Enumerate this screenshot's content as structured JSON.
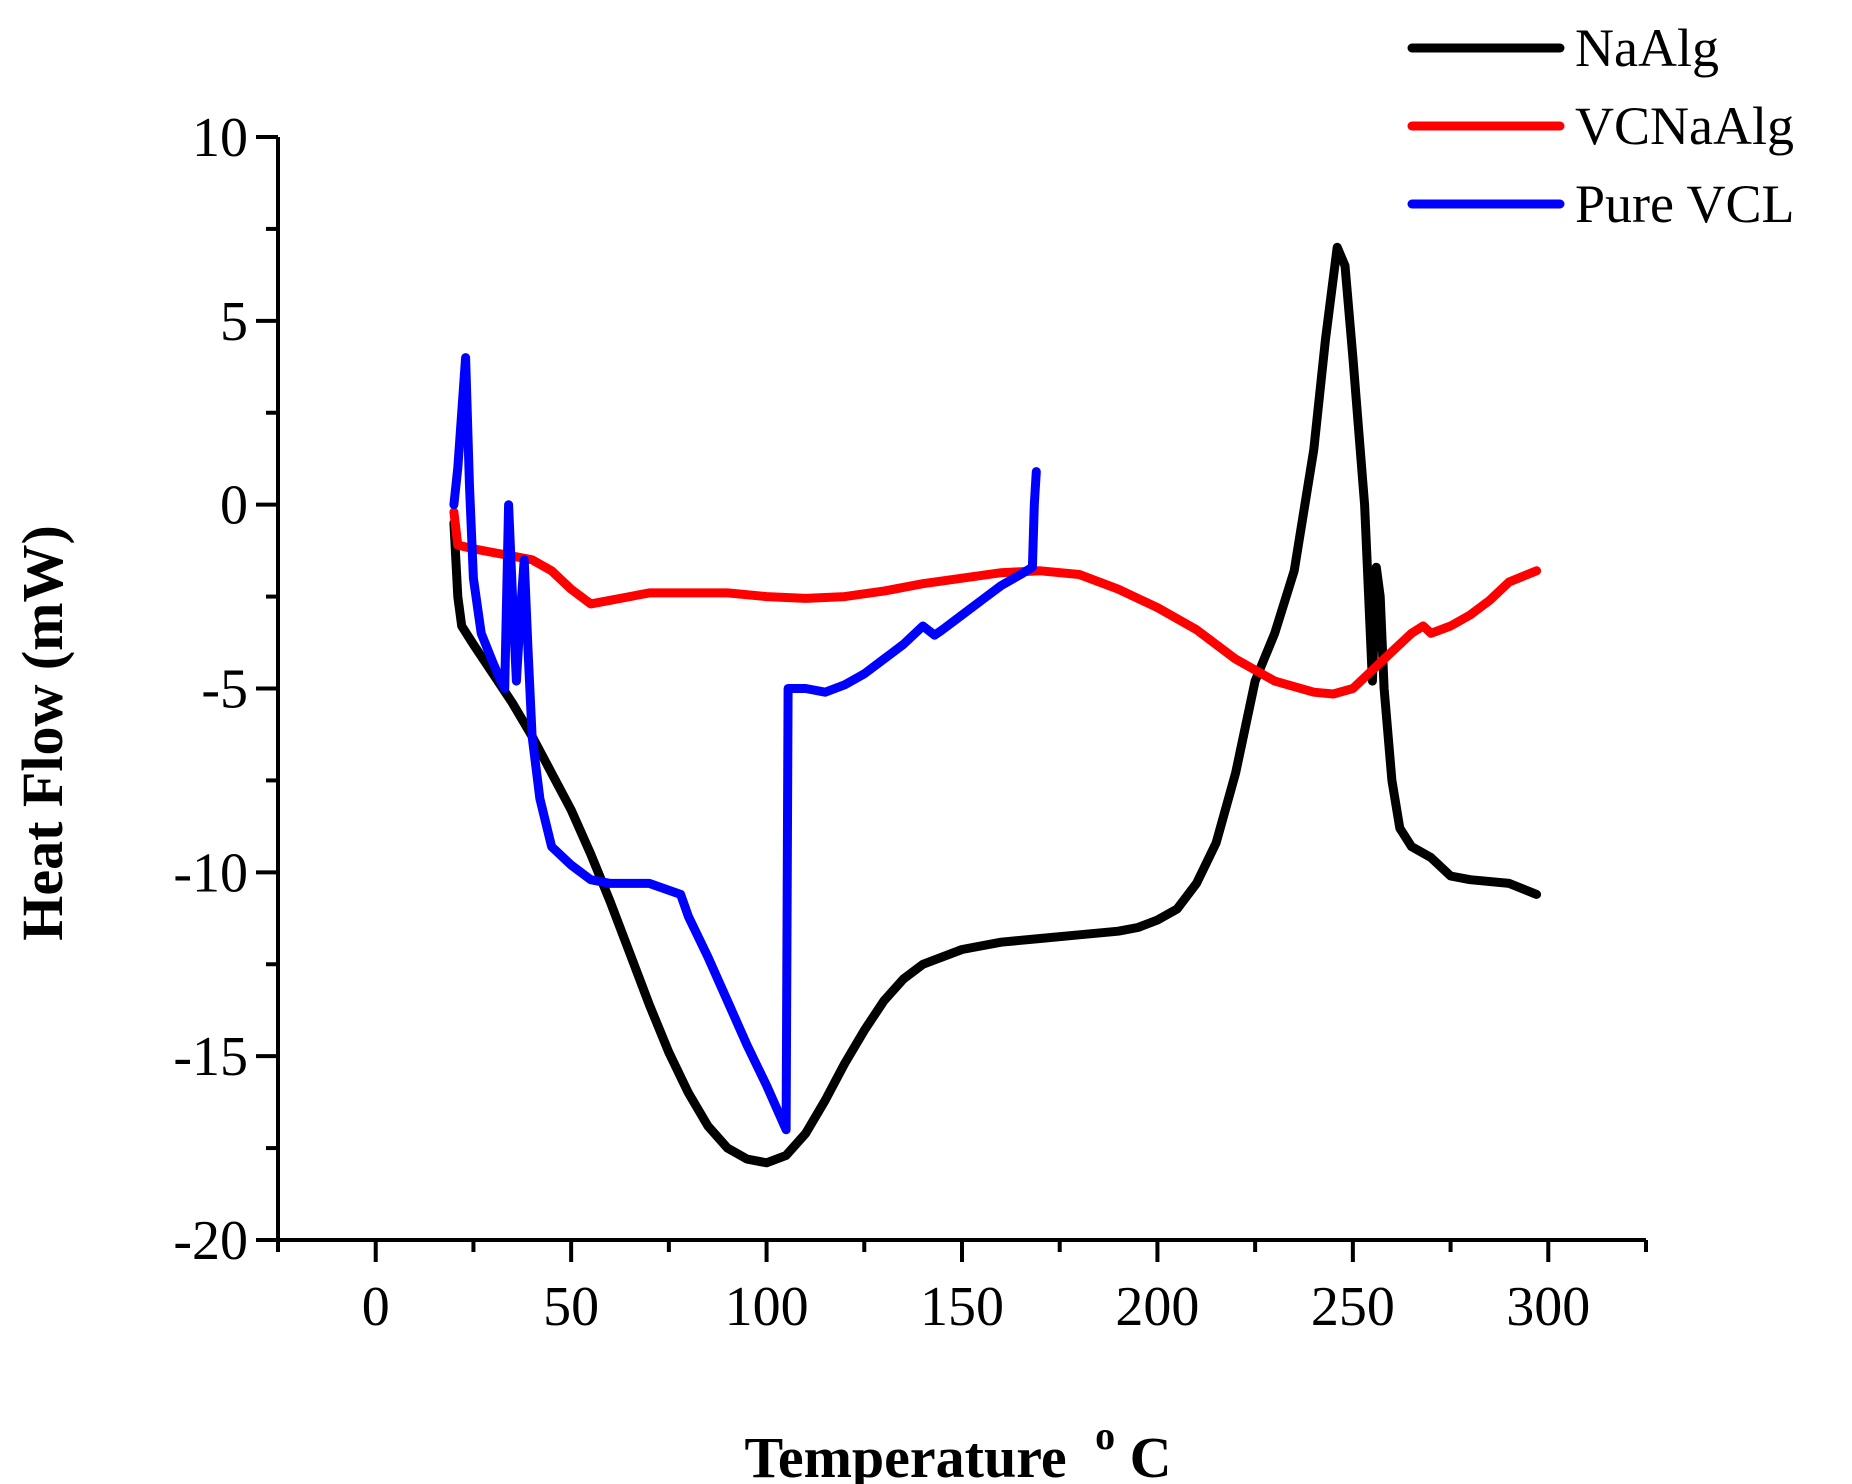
{
  "chart_data": {
    "type": "line",
    "title": "",
    "xlabel": "Temperature",
    "xlabel_sup": "o",
    "xlabel_unit": "C",
    "ylabel": "Heat Flow (mW)",
    "xlim": [
      -25,
      325
    ],
    "ylim": [
      -20,
      10
    ],
    "xticks": [
      0,
      50,
      100,
      150,
      200,
      250,
      300
    ],
    "yticks": [
      -20,
      -15,
      -10,
      -5,
      0,
      5,
      10
    ],
    "grid": false,
    "legend_position": "top-right",
    "series": [
      {
        "name": "NaAlg",
        "color": "#000000",
        "points": [
          [
            20,
            -0.5
          ],
          [
            21,
            -2.5
          ],
          [
            22,
            -3.3
          ],
          [
            25,
            -3.8
          ],
          [
            30,
            -4.6
          ],
          [
            35,
            -5.4
          ],
          [
            40,
            -6.3
          ],
          [
            45,
            -7.3
          ],
          [
            50,
            -8.3
          ],
          [
            55,
            -9.5
          ],
          [
            60,
            -10.8
          ],
          [
            65,
            -12.2
          ],
          [
            70,
            -13.6
          ],
          [
            75,
            -14.9
          ],
          [
            80,
            -16.0
          ],
          [
            85,
            -16.9
          ],
          [
            90,
            -17.5
          ],
          [
            95,
            -17.8
          ],
          [
            100,
            -17.9
          ],
          [
            105,
            -17.7
          ],
          [
            110,
            -17.1
          ],
          [
            115,
            -16.2
          ],
          [
            120,
            -15.2
          ],
          [
            125,
            -14.3
          ],
          [
            130,
            -13.5
          ],
          [
            135,
            -12.9
          ],
          [
            140,
            -12.5
          ],
          [
            150,
            -12.1
          ],
          [
            160,
            -11.9
          ],
          [
            170,
            -11.8
          ],
          [
            180,
            -11.7
          ],
          [
            190,
            -11.6
          ],
          [
            195,
            -11.5
          ],
          [
            200,
            -11.3
          ],
          [
            205,
            -11.0
          ],
          [
            210,
            -10.3
          ],
          [
            215,
            -9.2
          ],
          [
            220,
            -7.3
          ],
          [
            225,
            -4.8
          ],
          [
            230,
            -3.5
          ],
          [
            235,
            -1.8
          ],
          [
            240,
            1.5
          ],
          [
            243,
            4.5
          ],
          [
            246,
            7.0
          ],
          [
            248,
            6.5
          ],
          [
            250,
            4.0
          ],
          [
            253,
            0.0
          ],
          [
            255,
            -4.8
          ],
          [
            256,
            -1.7
          ],
          [
            257,
            -2.5
          ],
          [
            258,
            -5.0
          ],
          [
            260,
            -7.5
          ],
          [
            262,
            -8.8
          ],
          [
            265,
            -9.3
          ],
          [
            270,
            -9.6
          ],
          [
            275,
            -10.1
          ],
          [
            280,
            -10.2
          ],
          [
            290,
            -10.3
          ],
          [
            297,
            -10.6
          ]
        ]
      },
      {
        "name": "VCNaAlg",
        "color": "#ff0000",
        "points": [
          [
            20,
            -0.2
          ],
          [
            21,
            -1.1
          ],
          [
            25,
            -1.2
          ],
          [
            30,
            -1.3
          ],
          [
            35,
            -1.4
          ],
          [
            40,
            -1.5
          ],
          [
            45,
            -1.8
          ],
          [
            50,
            -2.3
          ],
          [
            55,
            -2.7
          ],
          [
            60,
            -2.6
          ],
          [
            70,
            -2.4
          ],
          [
            80,
            -2.4
          ],
          [
            90,
            -2.4
          ],
          [
            100,
            -2.5
          ],
          [
            110,
            -2.55
          ],
          [
            120,
            -2.5
          ],
          [
            130,
            -2.35
          ],
          [
            140,
            -2.15
          ],
          [
            150,
            -2.0
          ],
          [
            160,
            -1.85
          ],
          [
            170,
            -1.8
          ],
          [
            180,
            -1.9
          ],
          [
            190,
            -2.3
          ],
          [
            200,
            -2.8
          ],
          [
            210,
            -3.4
          ],
          [
            220,
            -4.2
          ],
          [
            230,
            -4.8
          ],
          [
            240,
            -5.1
          ],
          [
            245,
            -5.15
          ],
          [
            250,
            -5.0
          ],
          [
            255,
            -4.5
          ],
          [
            260,
            -4.0
          ],
          [
            265,
            -3.5
          ],
          [
            268,
            -3.3
          ],
          [
            270,
            -3.5
          ],
          [
            275,
            -3.3
          ],
          [
            280,
            -3.0
          ],
          [
            285,
            -2.6
          ],
          [
            290,
            -2.1
          ],
          [
            297,
            -1.8
          ]
        ]
      },
      {
        "name": "Pure VCL",
        "color": "#0000ff",
        "points": [
          [
            20,
            0.0
          ],
          [
            21,
            1.0
          ],
          [
            22,
            2.5
          ],
          [
            23,
            4.0
          ],
          [
            24,
            0.5
          ],
          [
            25,
            -2.0
          ],
          [
            27,
            -3.5
          ],
          [
            30,
            -4.3
          ],
          [
            32,
            -4.8
          ],
          [
            33,
            -5.0
          ],
          [
            34,
            0.0
          ],
          [
            35,
            -2.5
          ],
          [
            36,
            -4.8
          ],
          [
            37,
            -3.0
          ],
          [
            38,
            -1.5
          ],
          [
            39,
            -4.0
          ],
          [
            40,
            -6.3
          ],
          [
            42,
            -8.0
          ],
          [
            45,
            -9.3
          ],
          [
            50,
            -9.8
          ],
          [
            55,
            -10.2
          ],
          [
            60,
            -10.3
          ],
          [
            70,
            -10.3
          ],
          [
            78,
            -10.6
          ],
          [
            80,
            -11.2
          ],
          [
            85,
            -12.3
          ],
          [
            90,
            -13.5
          ],
          [
            95,
            -14.7
          ],
          [
            100,
            -15.8
          ],
          [
            105,
            -17.0
          ],
          [
            105.5,
            -5.0
          ],
          [
            110,
            -5.0
          ],
          [
            115,
            -5.1
          ],
          [
            120,
            -4.9
          ],
          [
            125,
            -4.6
          ],
          [
            130,
            -4.2
          ],
          [
            135,
            -3.8
          ],
          [
            140,
            -3.3
          ],
          [
            143,
            -3.55
          ],
          [
            145,
            -3.4
          ],
          [
            150,
            -3.0
          ],
          [
            155,
            -2.6
          ],
          [
            160,
            -2.2
          ],
          [
            165,
            -1.9
          ],
          [
            168,
            -1.7
          ],
          [
            168.5,
            0.0
          ],
          [
            169,
            0.9
          ]
        ]
      }
    ]
  }
}
